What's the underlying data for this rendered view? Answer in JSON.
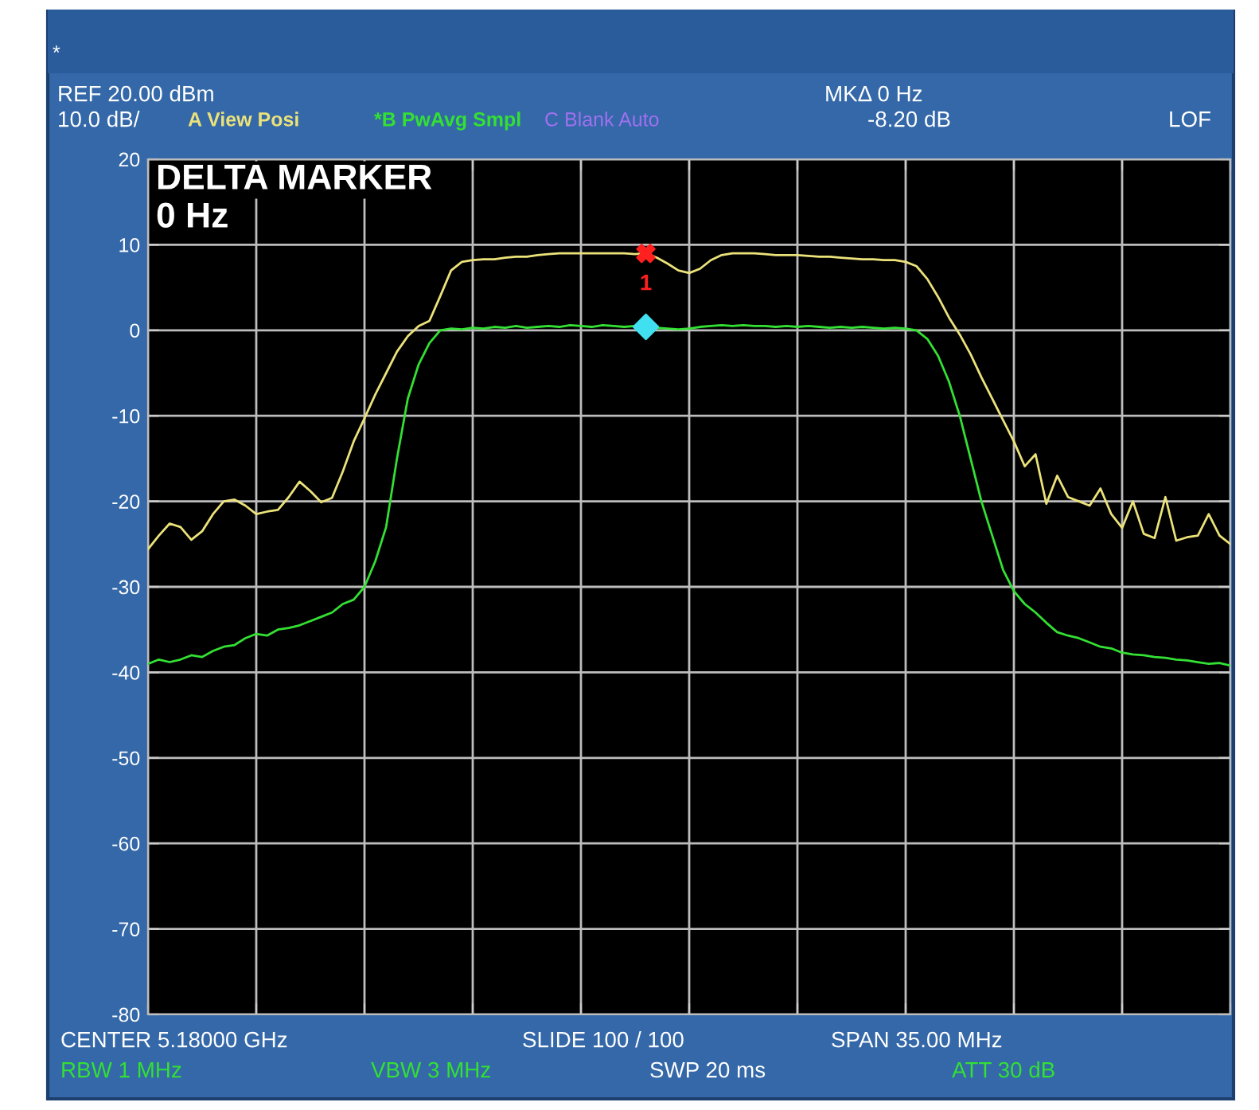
{
  "chart_data": {
    "type": "line",
    "categories": [
      null,
      null,
      null,
      null,
      null,
      null,
      null,
      null,
      null,
      null,
      null,
      null,
      null,
      null,
      null,
      null,
      null,
      null,
      null,
      null,
      null,
      null,
      null,
      null,
      null,
      null,
      null,
      null,
      null,
      null,
      null,
      null,
      null,
      null,
      null,
      null,
      null,
      null,
      null,
      null,
      null,
      null,
      null,
      null,
      null,
      null,
      null,
      null,
      null,
      null,
      null,
      null,
      null,
      null,
      null,
      null,
      null,
      null,
      null,
      null,
      null,
      null,
      null,
      null,
      null,
      null,
      null,
      null,
      null,
      null,
      null,
      null,
      null,
      null,
      null,
      null,
      null,
      null,
      null,
      null,
      null,
      null,
      null,
      null,
      null,
      null,
      null,
      null,
      null,
      null,
      null,
      null,
      null,
      null,
      null,
      null,
      null,
      null,
      null,
      null,
      null
    ],
    "series": [
      {
        "name": "A View Posi",
        "color": "#ece27a",
        "values": [
          -25.6,
          -24,
          -22.6,
          -23,
          -24.5,
          -23.5,
          -21.5,
          -20,
          -19.8,
          -20.5,
          -21.5,
          -21.2,
          -21,
          -19.5,
          -17.7,
          -18.8,
          -20.1,
          -19.6,
          -16.5,
          -13,
          -10.3,
          -7.5,
          -5,
          -2.5,
          -0.7,
          0.5,
          1.1,
          4,
          7,
          8,
          8.2,
          8.3,
          8.3,
          8.5,
          8.6,
          8.6,
          8.8,
          8.9,
          9,
          9,
          9,
          9,
          9,
          9,
          9,
          8.9,
          9,
          8.5,
          7.8,
          7,
          6.7,
          7.2,
          8.2,
          8.8,
          9,
          9,
          9,
          8.9,
          8.8,
          8.8,
          8.8,
          8.7,
          8.6,
          8.6,
          8.5,
          8.4,
          8.3,
          8.3,
          8.2,
          8.2,
          8,
          7.5,
          6,
          3.9,
          1.5,
          -0.5,
          -2.8,
          -5.5,
          -8,
          -10.5,
          -13,
          -15.9,
          -14.5,
          -20.3,
          -17,
          -19.5,
          -20,
          -20.5,
          -18.5,
          -21.5,
          -23.1,
          -20,
          -23.8,
          -24.3,
          -19.5,
          -24.6,
          -24.2,
          -24,
          -21.5,
          -24,
          -25
        ]
      },
      {
        "name": "*B PwAvg Smpl",
        "color": "#33e033",
        "values": [
          -39,
          -38.5,
          -38.8,
          -38.5,
          -38,
          -38.2,
          -37.5,
          -37,
          -36.8,
          -36,
          -35.5,
          -35.7,
          -35,
          -34.8,
          -34.5,
          -34,
          -33.5,
          -33,
          -32,
          -31.5,
          -30,
          -27,
          -23,
          -15,
          -8,
          -4,
          -1.5,
          0,
          0.2,
          0.1,
          0.3,
          0.2,
          0.4,
          0.3,
          0.5,
          0.3,
          0.4,
          0.5,
          0.4,
          0.6,
          0.5,
          0.4,
          0.6,
          0.5,
          0.4,
          0.5,
          0.4,
          0.3,
          0.2,
          0.1,
          0.2,
          0.4,
          0.5,
          0.6,
          0.5,
          0.6,
          0.5,
          0.5,
          0.4,
          0.5,
          0.4,
          0.5,
          0.4,
          0.3,
          0.4,
          0.3,
          0.4,
          0.3,
          0.2,
          0.3,
          0.2,
          0,
          -1,
          -3,
          -6,
          -10,
          -15,
          -20,
          -24,
          -28,
          -30.5,
          -32,
          -33,
          -34.2,
          -35.3,
          -35.7,
          -36,
          -36.5,
          -37,
          -37.2,
          -37.7,
          -37.9,
          -38,
          -38.2,
          -38.3,
          -38.5,
          -38.6,
          -38.8,
          -39,
          -38.9,
          -39.2
        ]
      },
      {
        "type": "scatter",
        "marker": "cross",
        "color": "#ff2020",
        "values": [
          null,
          null,
          null,
          null,
          null,
          null,
          null,
          null,
          null,
          null,
          null,
          null,
          null,
          null,
          null,
          null,
          null,
          null,
          null,
          null,
          null,
          null,
          null,
          null,
          null,
          null,
          null,
          null,
          null,
          null,
          null,
          null,
          null,
          null,
          null,
          null,
          null,
          null,
          null,
          null,
          null,
          null,
          null,
          null,
          null,
          null,
          9,
          null,
          null,
          null,
          null,
          null,
          null,
          null,
          null,
          null,
          null,
          null,
          null,
          null,
          null,
          null,
          null,
          null,
          null,
          null,
          null,
          null,
          null,
          null,
          null,
          null,
          null,
          null,
          null,
          null,
          null,
          null,
          null,
          null,
          null,
          null,
          null,
          null,
          null,
          null,
          null,
          null,
          null,
          null,
          null,
          null,
          null,
          null,
          null,
          null,
          null,
          null,
          null,
          null,
          null
        ]
      },
      {
        "type": "scatter",
        "marker": "diamond",
        "color": "#40e0f0",
        "values": [
          null,
          null,
          null,
          null,
          null,
          null,
          null,
          null,
          null,
          null,
          null,
          null,
          null,
          null,
          null,
          null,
          null,
          null,
          null,
          null,
          null,
          null,
          null,
          null,
          null,
          null,
          null,
          null,
          null,
          null,
          null,
          null,
          null,
          null,
          null,
          null,
          null,
          null,
          null,
          null,
          null,
          null,
          null,
          null,
          null,
          null,
          0.4,
          null,
          null,
          null,
          null,
          null,
          null,
          null,
          null,
          null,
          null,
          null,
          null,
          null,
          null,
          null,
          null,
          null,
          null,
          null,
          null,
          null,
          null,
          null,
          null,
          null,
          null,
          null,
          null,
          null,
          null,
          null,
          null,
          null,
          null,
          null,
          null,
          null,
          null,
          null,
          null,
          null,
          null,
          null,
          null,
          null,
          null,
          null,
          null,
          null,
          null,
          null,
          null,
          null,
          null
        ]
      }
    ],
    "ylim": [
      -80,
      20
    ],
    "yticks": [
      -80,
      -70,
      -60,
      -50,
      -40,
      -30,
      -20,
      -10,
      0,
      10,
      20
    ],
    "grid": true,
    "tick_labels": "y",
    "annotations": [
      "*",
      "REF 20.00 dBm",
      "10.0 dB/",
      "C Blank Auto",
      "MKΔ 0 Hz",
      "-8.20 dB",
      "LOF",
      "DELTA MARKER",
      "0 Hz",
      "1",
      "CENTER 5.18000 GHz",
      "SLIDE 100 / 100",
      "SPAN 35.00 MHz",
      "RBW 1 MHz",
      "VBW 3 MHz",
      "SWP 20 ms",
      "ATT 30 dB"
    ]
  }
}
